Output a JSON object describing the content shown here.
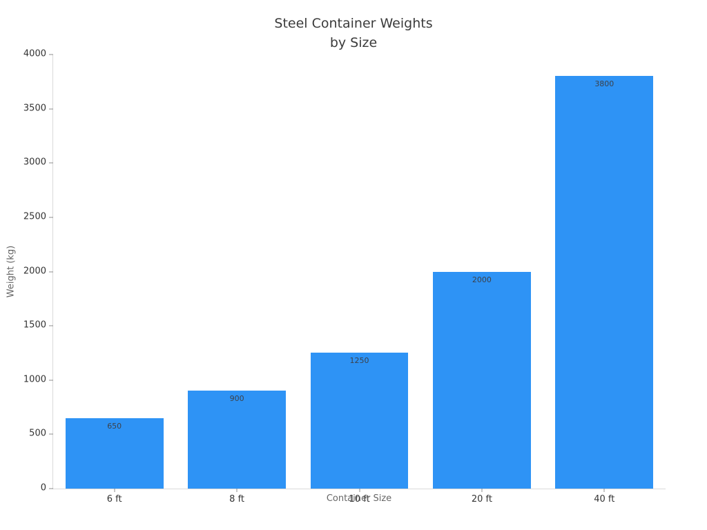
{
  "chart_data": {
    "type": "bar",
    "title": "Steel Container Weights\nby Size",
    "xlabel": "Container Size",
    "ylabel": "Weight (kg)",
    "categories": [
      "6 ft",
      "8 ft",
      "10 ft",
      "20 ft",
      "40 ft"
    ],
    "values": [
      650,
      900,
      1250,
      2000,
      3800
    ],
    "bar_labels": [
      "650",
      "900",
      "1250",
      "2000",
      "3800"
    ],
    "ylim": [
      0,
      4000
    ],
    "yticks": [
      0,
      500,
      1000,
      1500,
      2000,
      2500,
      3000,
      3500,
      4000
    ],
    "grid": false,
    "legend": null,
    "layout_hints": {
      "bar_label_position": "inside-top",
      "spines": [
        "left",
        "bottom"
      ]
    },
    "colors": {
      "bar": "#2e93f5",
      "title_text": "#3b3b3b",
      "tick_text": "#333333",
      "axis_title_text": "#666666",
      "spine": "#d9d9d9",
      "tick_mark": "#8c8c8c",
      "background": "#ffffff",
      "bar_value_text": "#3c4149"
    }
  }
}
